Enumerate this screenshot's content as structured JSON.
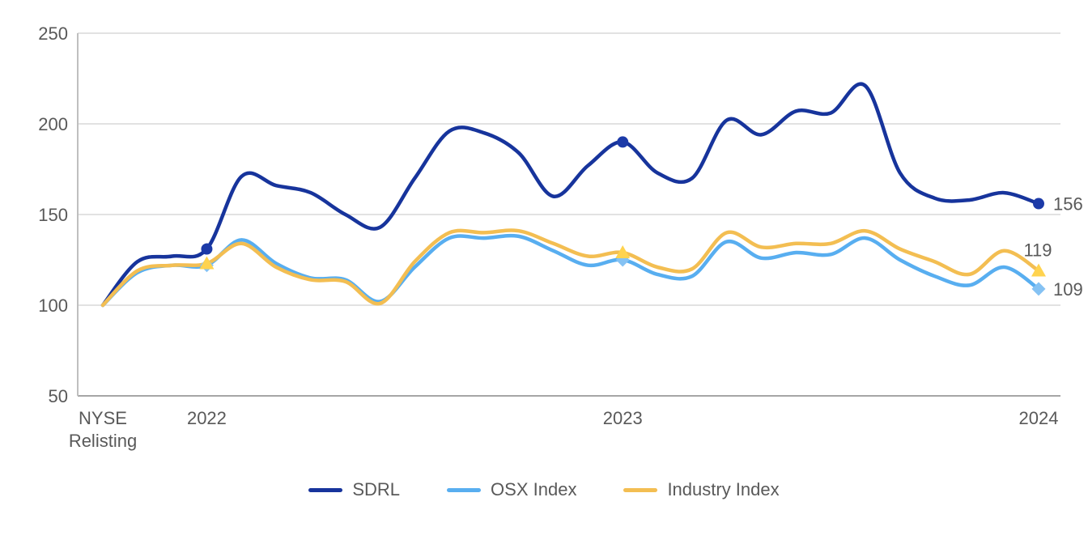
{
  "chart": {
    "colors": {
      "background": "#ffffff",
      "text": "#595959",
      "gridline": "#d9d9d9",
      "x_axis_line": "#a6a6a6",
      "y_axis_line": "#bfbfbf"
    }
  },
  "chart_data": {
    "type": "line",
    "title": "",
    "xlabel": "",
    "ylabel": "",
    "grid": true,
    "legend_position": "bottom",
    "y_axis": {
      "min": 50,
      "max": 250,
      "tick_step": 50,
      "tick_labels": [
        "250",
        "200",
        "150",
        "100",
        "50"
      ]
    },
    "x_axis": {
      "n_points": 28,
      "tick_positions": [
        0,
        3,
        15,
        27
      ],
      "tick_labels": [
        "NYSE Relisting",
        "2022",
        "2023",
        "2024"
      ],
      "tick_label_lines": [
        [
          "NYSE",
          "Relisting"
        ],
        [
          "2022"
        ],
        [
          "2023"
        ],
        [
          "2024"
        ]
      ]
    },
    "legend": [
      "SDRL",
      "OSX Index",
      "Industry Index"
    ],
    "series": [
      {
        "name": "SDRL",
        "color": "#17349c",
        "marker": "circle",
        "marker_fill": "#1c3aa8",
        "marker_indices": [
          3,
          15,
          27
        ],
        "marker_values": [
          131,
          190,
          156
        ],
        "end_label": "156",
        "end_label_pos": "right",
        "values": [
          100,
          124,
          127,
          131,
          171,
          166,
          162,
          150,
          143,
          170,
          196,
          195,
          184,
          160,
          177,
          190,
          173,
          170,
          202,
          194,
          207,
          206,
          221,
          173,
          159,
          158,
          162,
          156
        ]
      },
      {
        "name": "OSX Index",
        "color": "#58aef0",
        "marker": "diamond",
        "marker_fill": "#85c2f3",
        "marker_indices": [
          3,
          15,
          27
        ],
        "marker_values": [
          122,
          125,
          109
        ],
        "end_label": "109",
        "end_label_pos": "right",
        "values": [
          100,
          118,
          122,
          122,
          136,
          123,
          115,
          114,
          102,
          121,
          137,
          137,
          138,
          130,
          122,
          125,
          117,
          116,
          135,
          126,
          129,
          128,
          137,
          125,
          116,
          111,
          121,
          109
        ]
      },
      {
        "name": "Industry Index",
        "color": "#f3be52",
        "marker": "triangle",
        "marker_fill": "#ffd34f",
        "marker_indices": [
          3,
          15,
          27
        ],
        "marker_values": [
          123,
          129,
          119
        ],
        "end_label": "119",
        "end_label_pos": "above",
        "values": [
          100,
          119,
          122,
          123,
          134,
          121,
          114,
          113,
          101,
          124,
          140,
          140,
          141,
          134,
          127,
          129,
          121,
          120,
          140,
          132,
          134,
          134,
          141,
          131,
          124,
          117,
          130,
          119
        ]
      }
    ]
  }
}
